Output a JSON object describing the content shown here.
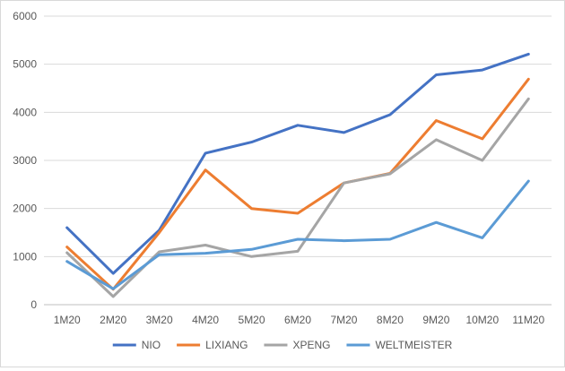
{
  "chart_data": {
    "type": "line",
    "title": "",
    "xlabel": "",
    "ylabel": "",
    "categories": [
      "1M20",
      "2M20",
      "3M20",
      "4M20",
      "5M20",
      "6M20",
      "7M20",
      "8M20",
      "9M20",
      "10M20",
      "11M20"
    ],
    "ylim": [
      0,
      6000
    ],
    "yticks": [
      0,
      1000,
      2000,
      3000,
      4000,
      5000,
      6000
    ],
    "grid": true,
    "legend": "bottom",
    "series": [
      {
        "name": "NIO",
        "color": "#4472c4",
        "values": [
          1600,
          650,
          1550,
          3150,
          3380,
          3730,
          3580,
          3950,
          4780,
          4880,
          5210
        ]
      },
      {
        "name": "LIXIANG",
        "color": "#ed7d31",
        "values": [
          1200,
          320,
          1500,
          2800,
          2000,
          1900,
          2530,
          2730,
          3830,
          3450,
          4690
        ]
      },
      {
        "name": "XPENG",
        "color": "#a5a5a5",
        "values": [
          1080,
          170,
          1100,
          1240,
          1000,
          1110,
          2530,
          2720,
          3430,
          3000,
          4280
        ]
      },
      {
        "name": "WELTMEISTER",
        "color": "#5b9bd5",
        "values": [
          900,
          330,
          1040,
          1070,
          1150,
          1360,
          1330,
          1360,
          1710,
          1390,
          2570
        ]
      }
    ]
  }
}
